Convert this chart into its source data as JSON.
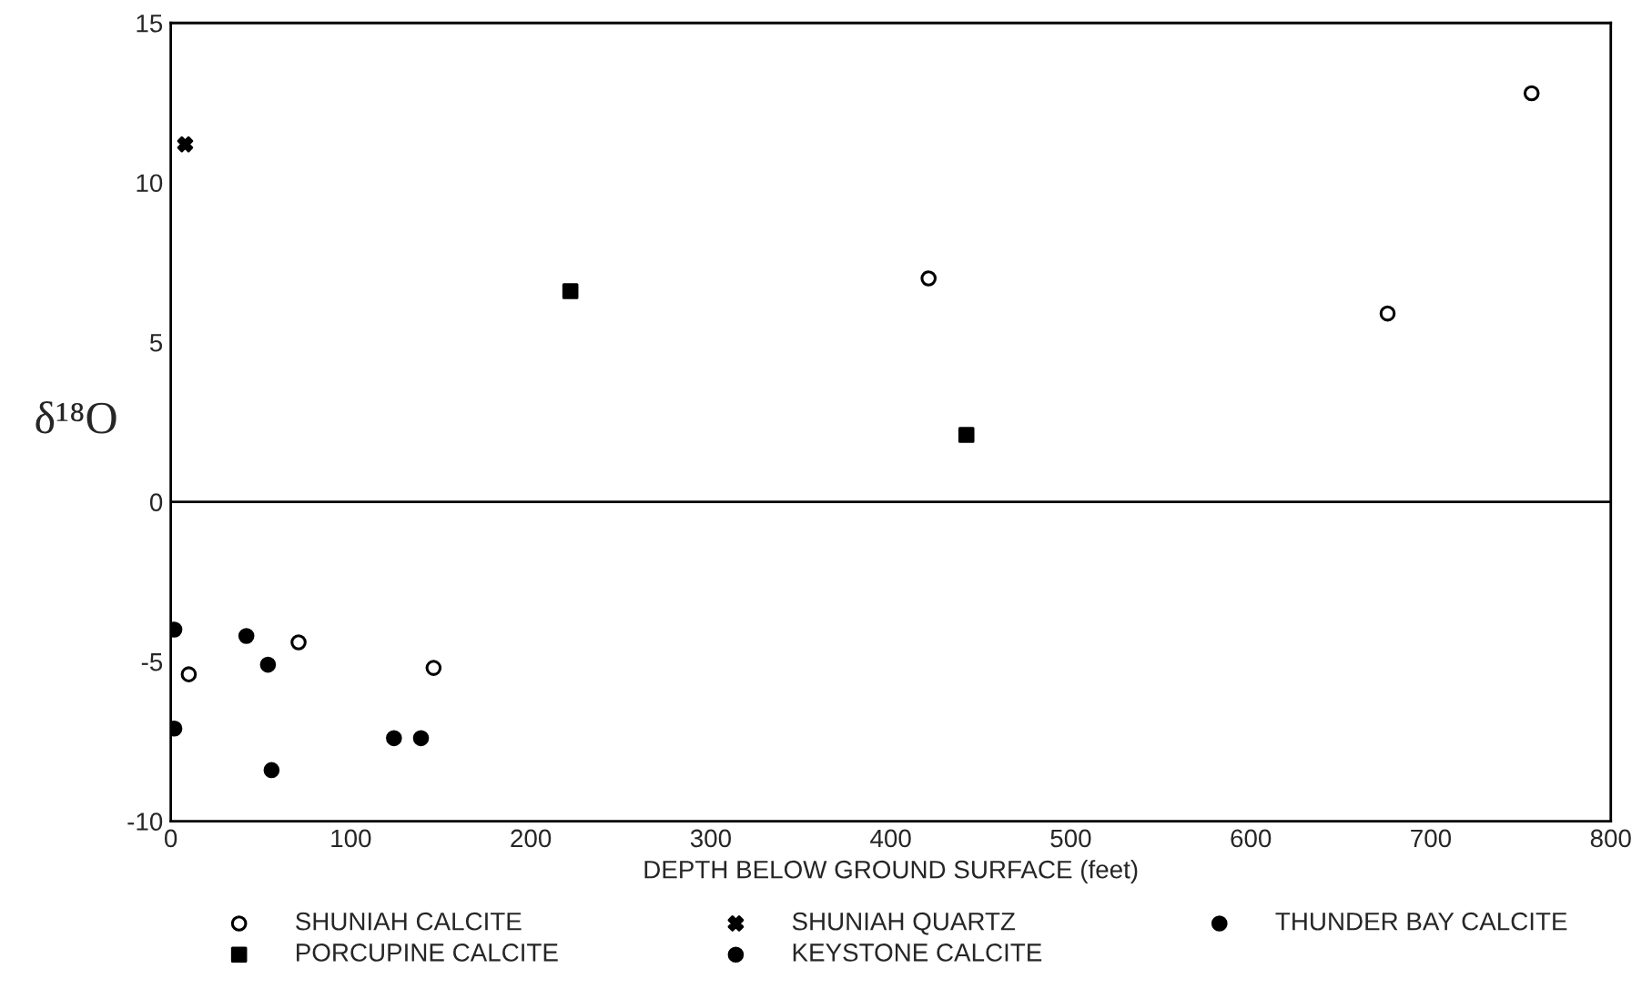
{
  "chart_data": {
    "type": "scatter",
    "xlabel": "DEPTH BELOW GROUND SURFACE (feet)",
    "ylabel": "δ¹⁸O",
    "xlim": [
      0,
      800
    ],
    "xticks": [
      0,
      100,
      200,
      300,
      400,
      500,
      600,
      700,
      800
    ],
    "ylim": [
      -10,
      15
    ],
    "yticks": [
      -10,
      -5,
      0,
      5,
      10,
      15
    ],
    "grid": false,
    "legend": "bottom",
    "ref_lines": [
      {
        "axis": "y",
        "value": 0,
        "color": "#000000"
      }
    ],
    "series": [
      {
        "name": "SHUNIAH CALCITE",
        "color": "#ffffff",
        "marker": "circle",
        "x": [
          10,
          71,
          146,
          421,
          676,
          756
        ],
        "values": [
          -5.4,
          -4.4,
          -5.2,
          7.0,
          5.9,
          12.8
        ]
      },
      {
        "name": "SHUNIAH QUARTZ",
        "color": "#000000",
        "marker": "cross",
        "x": [
          8
        ],
        "values": [
          11.2
        ]
      },
      {
        "name": "THUNDER BAY CALCITE",
        "color": "#000000",
        "marker": "circle",
        "x": [
          2,
          2,
          42,
          54,
          56
        ],
        "values": [
          -4.0,
          -7.1,
          -4.2,
          -5.1,
          -8.4
        ]
      },
      {
        "name": "PORCUPINE CALCITE",
        "color": "#000000",
        "marker": "square",
        "x": [
          222,
          442
        ],
        "values": [
          6.6,
          2.1
        ]
      },
      {
        "name": "KEYSTONE CALCITE",
        "color": "#000000",
        "marker": "circle",
        "x": [
          124,
          139
        ],
        "values": [
          -7.4,
          -7.4
        ]
      }
    ]
  }
}
